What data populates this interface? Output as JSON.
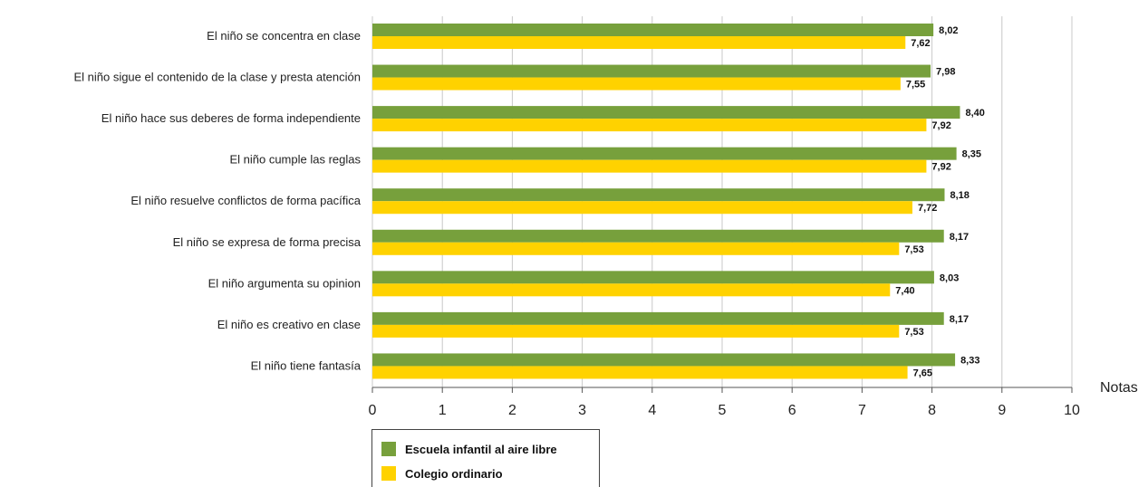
{
  "chart_data": {
    "type": "bar",
    "orientation": "horizontal",
    "categories": [
      "El niño se concentra en clase",
      "El niño sigue el contenido de la clase y presta atención",
      "El niño hace sus deberes de forma independiente",
      "El niño cumple las reglas",
      "El niño resuelve conflictos de forma pacífica",
      "El niño se expresa de forma precisa",
      "El niño argumenta su opinion",
      "El niño es creativo en clase",
      "El niño tiene fantasía"
    ],
    "series": [
      {
        "name": "Escuela infantil al aire libre",
        "color": "#77a03c",
        "values": [
          8.02,
          7.98,
          8.4,
          8.35,
          8.18,
          8.17,
          8.03,
          8.17,
          8.33
        ],
        "labels": [
          "8,02",
          "7,98",
          "8,40",
          "8,35",
          "8,18",
          "8,17",
          "8,03",
          "8,17",
          "8,33"
        ]
      },
      {
        "name": "Colegio ordinario",
        "color": "#ffd200",
        "values": [
          7.62,
          7.55,
          7.92,
          7.92,
          7.72,
          7.53,
          7.4,
          7.53,
          7.65
        ],
        "labels": [
          "7,62",
          "7,55",
          "7,92",
          "7,92",
          "7,72",
          "7,53",
          "7,40",
          "7,53",
          "7,65"
        ]
      }
    ],
    "xlabel": "Notas",
    "ylabel": "",
    "xlim": [
      0,
      10
    ],
    "xticks": [
      "0",
      "1",
      "2",
      "3",
      "4",
      "5",
      "6",
      "7",
      "8",
      "9",
      "10"
    ],
    "grid": true,
    "legend_position": "bottom-left"
  }
}
